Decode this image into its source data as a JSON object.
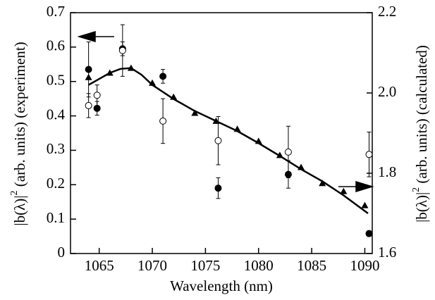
{
  "chart_data": {
    "type": "scatter",
    "x_label": "Wavelength  (nm)",
    "y_label": {
      "base": "|b(λ)|",
      "exponent": "2",
      "text": " (arb. units) (experiment)"
    },
    "y2_label": {
      "base": "|b(λ)|",
      "exponent": "2",
      "text": " (arb. units) (calculated)"
    },
    "xlim": [
      1062.3,
      1090.7
    ],
    "xticks": [
      1065,
      1070,
      1075,
      1080,
      1085,
      1090
    ],
    "ylim": [
      0,
      0.7
    ],
    "yticks": [
      0,
      0.1,
      0.2,
      0.3,
      0.4,
      0.5,
      0.6,
      0.7
    ],
    "y2lim": [
      1.6,
      2.2
    ],
    "y2ticks": [
      1.6,
      1.8,
      {
        "value": 2,
        "label": "2.0"
      },
      2.2
    ],
    "color": "#000000",
    "series": [
      {
        "marker": "filled-circle",
        "x": [
          1064,
          1064.8,
          1067.2,
          1071,
          1076.2,
          1082.8,
          1090.4
        ],
        "values": [
          0.535,
          0.422,
          0.595,
          0.515,
          0.19,
          0.23,
          0.058
        ],
        "errors": [
          0.08,
          0.02,
          0.02,
          0.02,
          0.03,
          0.04,
          0.008
        ]
      },
      {
        "marker": "open-circle",
        "x": [
          1064,
          1064.8,
          1067.2,
          1071,
          1076.2,
          1082.8,
          1090.4
        ],
        "values": [
          0.43,
          0.46,
          0.59,
          0.385,
          0.328,
          0.295,
          0.288
        ],
        "errors": [
          0.035,
          0.03,
          0.075,
          0.065,
          0.07,
          0.075,
          0.065
        ]
      },
      {
        "marker": "triangle",
        "axis": "y2",
        "x": [
          1064,
          1066,
          1068,
          1070,
          1072,
          1074,
          1076,
          1078,
          1080,
          1082,
          1084,
          1086,
          1088,
          1090
        ],
        "values": [
          2.039,
          2.05,
          2.062,
          2.025,
          1.99,
          1.95,
          1.93,
          1.91,
          1.88,
          1.845,
          1.815,
          1.775,
          1.755,
          1.72
        ]
      },
      {
        "marker": "line",
        "axis": "y2",
        "x": [
          1064,
          1065,
          1066,
          1067,
          1068,
          1069,
          1070,
          1072,
          1074,
          1076,
          1078,
          1080,
          1082,
          1084,
          1086,
          1088,
          1090.3
        ],
        "values": [
          2.02,
          2.035,
          2.05,
          2.06,
          2.062,
          2.045,
          2.02,
          1.985,
          1.955,
          1.93,
          1.905,
          1.875,
          1.843,
          1.81,
          1.78,
          1.745,
          1.7
        ]
      }
    ]
  }
}
